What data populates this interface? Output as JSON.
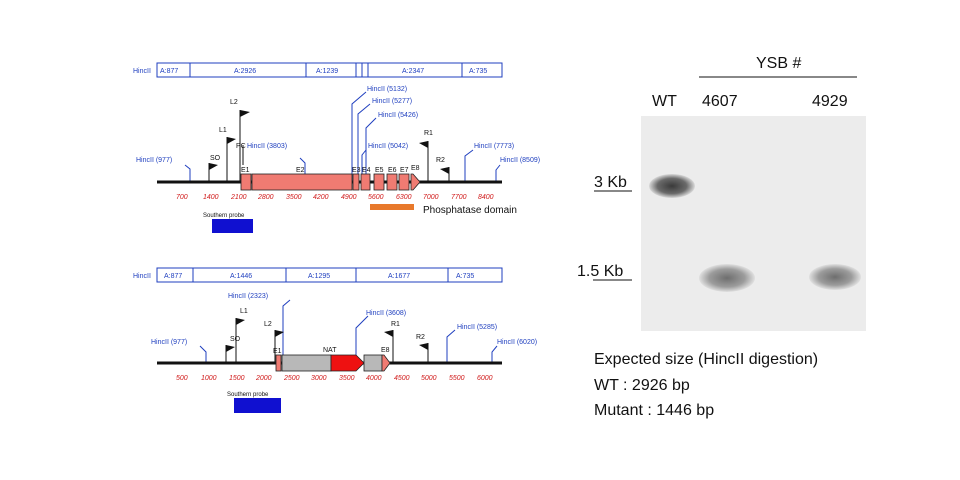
{
  "top_map": {
    "fragments": [
      "HincII",
      "A:877",
      "A:2926",
      "A:1239",
      "A:2347",
      "A:735"
    ],
    "sites": [
      "HincII (977)",
      "HincII (3803)",
      "HincII (5132)",
      "HincII (5277)",
      "HincII (5426)",
      "HincII (5042)",
      "HincII (7773)",
      "HincII (8509)"
    ],
    "primers": [
      "L2",
      "L1",
      "SO",
      "PC",
      "R1",
      "R2"
    ],
    "exons": [
      "E1",
      "E2",
      "E3",
      "E4",
      "E5",
      "E6",
      "E7",
      "E8"
    ],
    "ticks": [
      "700",
      "1400",
      "2100",
      "2800",
      "3500",
      "4200",
      "4900",
      "5600",
      "6300",
      "7000",
      "7700",
      "8400"
    ],
    "probe_label": "Southern probe",
    "domain_label": "Phosphatase domain",
    "colors": {
      "exon": "#f07b72",
      "domain": "#e8792b",
      "probe": "#1010d0"
    }
  },
  "bottom_map": {
    "fragments": [
      "HincII",
      "A:877",
      "A:1446",
      "A:1295",
      "A:1677",
      "A:735"
    ],
    "sites": [
      "HincII (977)",
      "HincII (2323)",
      "HincII (3608)",
      "HincII (5285)",
      "HincII (6020)"
    ],
    "primers": [
      "L1",
      "SO",
      "L2",
      "R1",
      "R2"
    ],
    "exons": [
      "E1",
      "E8"
    ],
    "nat_label": "NAT",
    "ticks": [
      "500",
      "1000",
      "1500",
      "2000",
      "2500",
      "3000",
      "3500",
      "4000",
      "4500",
      "5000",
      "5500",
      "6000"
    ],
    "probe_label": "Southern probe",
    "colors": {
      "cassette": "#b8b8b8",
      "nat": "#ee1111"
    }
  },
  "blot": {
    "group_label": "YSB #",
    "lanes": [
      "WT",
      "4607",
      "4929"
    ],
    "markers": [
      "3 Kb",
      "1.5 Kb"
    ]
  },
  "caption": {
    "line1": "Expected size (HincII digestion)",
    "line2": "WT : 2926 bp",
    "line3": "Mutant : 1446 bp"
  }
}
